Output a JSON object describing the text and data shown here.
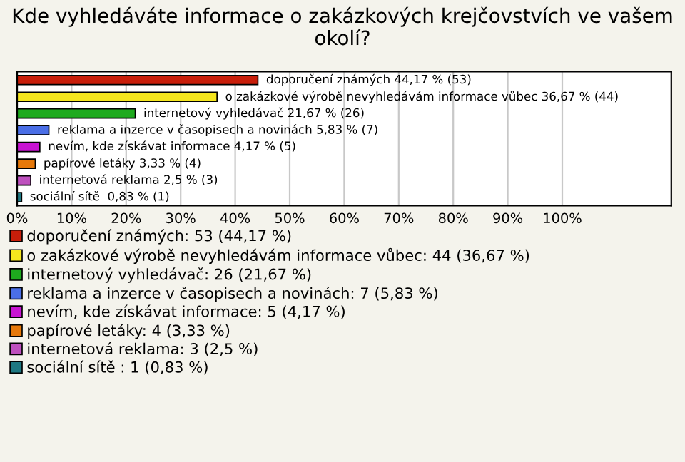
{
  "chart_data": {
    "type": "bar",
    "orientation": "horizontal",
    "title": "Kde vyhledáváte informace o zakázkových krejčovstvích ve vašem okolí?",
    "categories": [
      null,
      null,
      null,
      null,
      null,
      null,
      null,
      null
    ],
    "series": [
      {
        "name": "doporučení známých: 53 (44,17 %)",
        "color": "#c81e0a",
        "values": [
          44.17,
          null,
          null,
          null,
          null,
          null,
          null,
          null
        ],
        "value_labels": [
          "doporučení známých 44,17 % (53)",
          null,
          null,
          null,
          null,
          null,
          null,
          null
        ]
      },
      {
        "name": "o zakázkové výrobě nevyhledávám informace vůbec: 44 (36,67 %)",
        "color": "#f5e61e",
        "values": [
          null,
          36.67,
          null,
          null,
          null,
          null,
          null,
          null
        ],
        "value_labels": [
          null,
          "o zakázkové výrobě nevyhledávám informace vůbec 36,67 % (44)",
          null,
          null,
          null,
          null,
          null,
          null
        ]
      },
      {
        "name": "internetový vyhledávač: 26 (21,67 %)",
        "color": "#1eaa1e",
        "values": [
          null,
          null,
          21.67,
          null,
          null,
          null,
          null,
          null
        ],
        "value_labels": [
          null,
          null,
          "internetový vyhledávač 21,67 % (26)",
          null,
          null,
          null,
          null,
          null
        ]
      },
      {
        "name": "reklama a inzerce v časopisech a novinách: 7 (5,83 %)",
        "color": "#4a6ee6",
        "values": [
          null,
          null,
          null,
          5.83,
          null,
          null,
          null,
          null
        ],
        "value_labels": [
          null,
          null,
          null,
          "reklama a inzerce v časopisech a novinách 5,83 % (7)",
          null,
          null,
          null,
          null
        ]
      },
      {
        "name": "nevím, kde získávat informace: 5 (4,17 %)",
        "color": "#c814d2",
        "values": [
          null,
          null,
          null,
          null,
          4.17,
          null,
          null,
          null
        ],
        "value_labels": [
          null,
          null,
          null,
          null,
          "nevím, kde získávat informace 4,17 % (5)",
          null,
          null,
          null
        ]
      },
      {
        "name": "papírové letáky: 4 (3,33 %)",
        "color": "#e6780a",
        "values": [
          null,
          null,
          null,
          null,
          null,
          3.33,
          null,
          null
        ],
        "value_labels": [
          null,
          null,
          null,
          null,
          null,
          "papírové letáky 3,33 % (4)",
          null,
          null
        ]
      },
      {
        "name": "internetová reklama: 3 (2,5 %)",
        "color": "#be50be",
        "values": [
          null,
          null,
          null,
          null,
          null,
          null,
          2.5,
          null
        ],
        "value_labels": [
          null,
          null,
          null,
          null,
          null,
          null,
          "internetová reklama 2,5 % (3)",
          null
        ]
      },
      {
        "name": "sociální sítě : 1 (0,83 %)",
        "color": "#1e7882",
        "values": [
          null,
          null,
          null,
          null,
          null,
          null,
          null,
          0.83
        ],
        "value_labels": [
          null,
          null,
          null,
          null,
          null,
          null,
          null,
          "sociální sítě  0,83 % (1)"
        ]
      }
    ],
    "xlim": [
      0,
      120
    ],
    "xticks": [
      {
        "value": 0,
        "label": "0%"
      },
      {
        "value": 10,
        "label": "10%"
      },
      {
        "value": 20,
        "label": "20%"
      },
      {
        "value": 30,
        "label": "30%"
      },
      {
        "value": 40,
        "label": "40%"
      },
      {
        "value": 50,
        "label": "50%"
      },
      {
        "value": 60,
        "label": "60%"
      },
      {
        "value": 70,
        "label": "70%"
      },
      {
        "value": 80,
        "label": "80%"
      },
      {
        "value": 90,
        "label": "90%"
      },
      {
        "value": 100,
        "label": "100%"
      }
    ],
    "grid": "x",
    "legend": "bottom"
  }
}
